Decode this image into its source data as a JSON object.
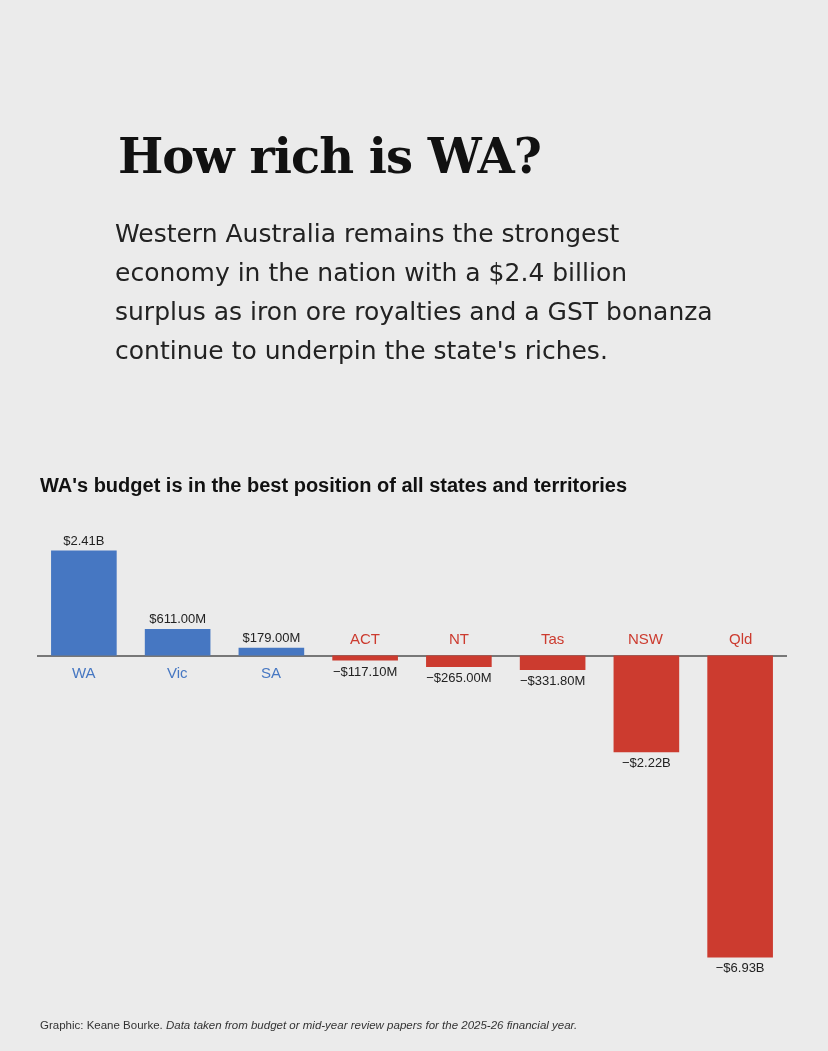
{
  "chart_data": {
    "type": "bar",
    "title": "How rich is WA?",
    "subtitle": "Western Australia remains the strongest economy in the nation with a $2.4 billion surplus as iron ore royalties and a GST bonanza continue to underpin the state's riches.",
    "annotations": [
      "WA's budget is in the best position of all states and territories",
      "Graphic: Keane Bourke.",
      "Data taken from budget or mid-year review papers for the 2025-26 financial year."
    ],
    "categories": [
      "WA",
      "Vic",
      "SA",
      "ACT",
      "NT",
      "Tas",
      "NSW",
      "Qld"
    ],
    "values": [
      2410000000,
      611000000,
      179000000,
      -117100000,
      -265000000,
      -331800000,
      -2220000000,
      -6930000000
    ],
    "value_labels": [
      "$2.41B",
      "$611.00M",
      "$179.00M",
      "−$117.10M",
      "−$265.00M",
      "−$331.80M",
      "−$2.22B",
      "−$6.93B"
    ],
    "colors": [
      "#4677c2",
      "#4677c2",
      "#4677c2",
      "#cc3b2f",
      "#cc3b2f",
      "#cc3b2f",
      "#cc3b2f",
      "#cc3b2f"
    ]
  }
}
